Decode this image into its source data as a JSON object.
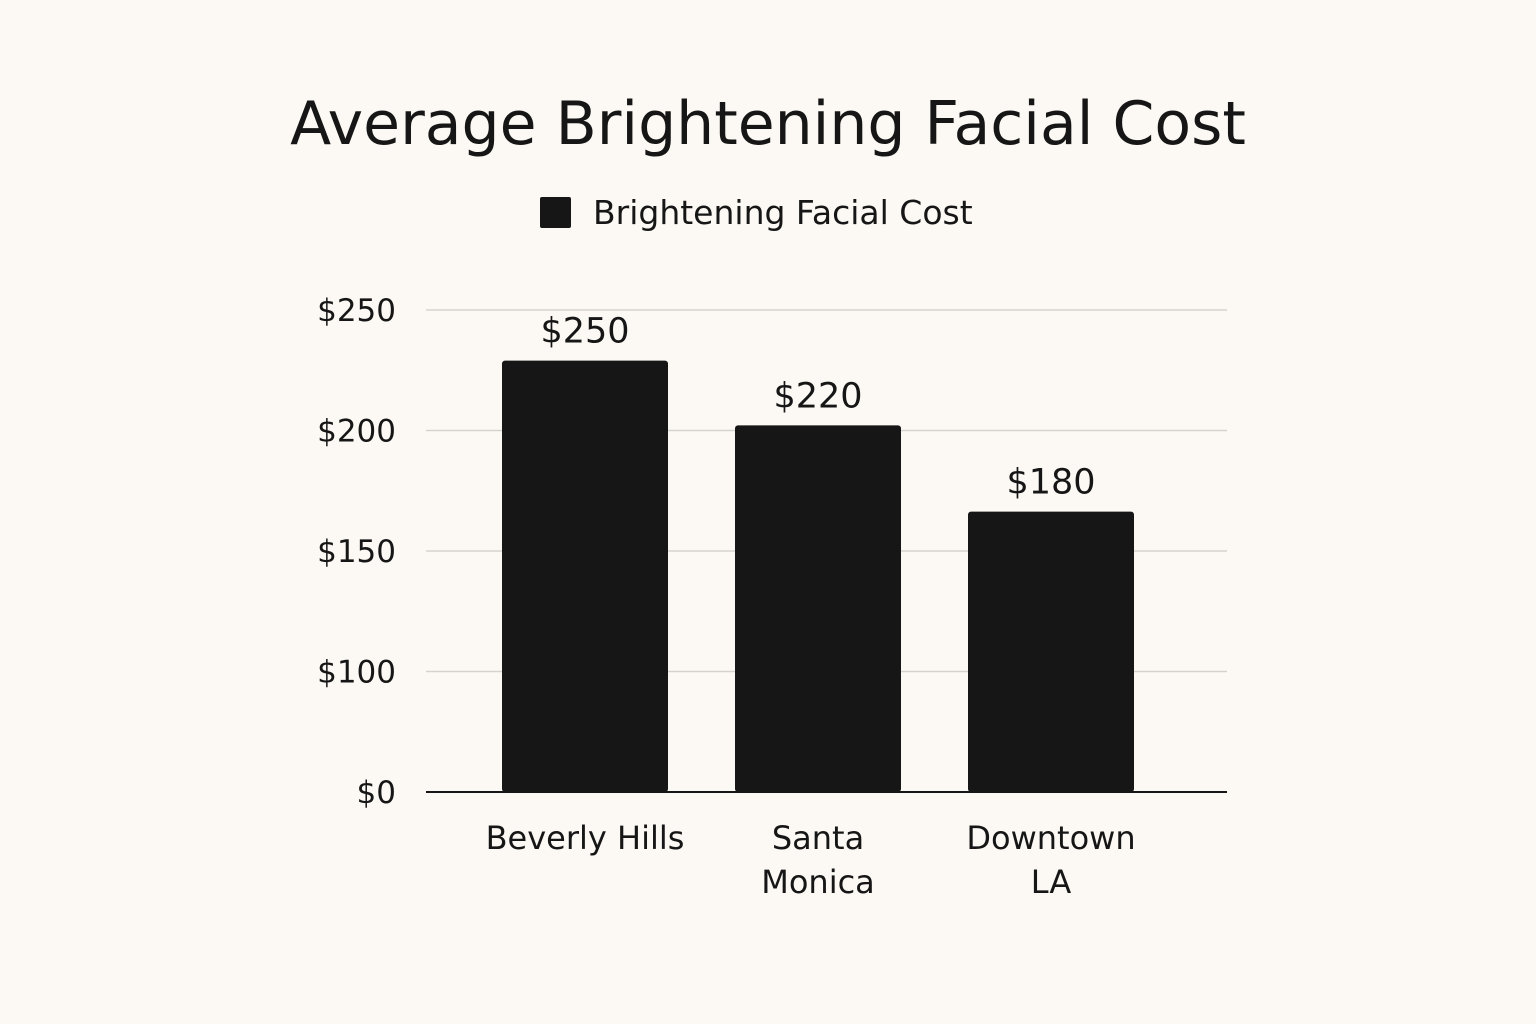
{
  "chart_data": {
    "type": "bar",
    "title": "Average Brightening Facial Cost",
    "categories": [
      "Beverly Hills",
      "Santa Monica",
      "Downtown LA"
    ],
    "category_lines": [
      [
        "Beverly Hills"
      ],
      [
        "Santa",
        "Monica"
      ],
      [
        "Downtown",
        "LA"
      ]
    ],
    "series": [
      {
        "name": "Brightening Facial Cost",
        "values": [
          250,
          220,
          180
        ],
        "color": "#161616"
      }
    ],
    "data_labels": [
      "$250",
      "$220",
      "$180"
    ],
    "y_ticks": [
      {
        "label": "$250",
        "slot": 4
      },
      {
        "label": "$200",
        "slot": 3
      },
      {
        "label": "$150",
        "slot": 2
      },
      {
        "label": "$100",
        "slot": 1
      },
      {
        "label": "$0",
        "slot": 0
      }
    ],
    "xlabel": "",
    "ylabel": "",
    "grid": true,
    "legend_position": "top-center"
  }
}
